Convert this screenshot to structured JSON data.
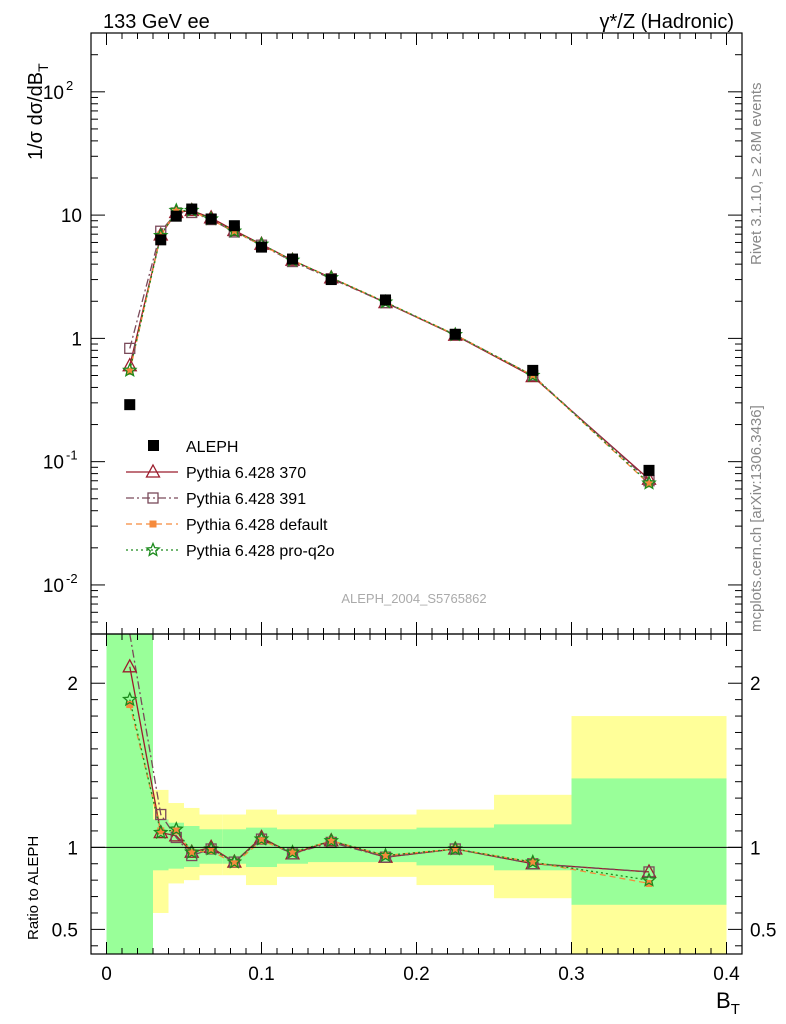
{
  "header": {
    "left": "133 GeV ee",
    "right": "γ*/Z (Hadronic)"
  },
  "side": {
    "rivet": "Rivet 3.1.10, ≥ 2.8M events",
    "mcplots": "mcplots.cern.ch [arXiv:1306.3436]"
  },
  "watermark": "ALEPH_2004_S5765862",
  "axes": {
    "ylabel_main": "1/σ  dσ/dB_T",
    "ylabel_ratio": "Ratio to ALEPH",
    "xlabel": "B_T"
  },
  "colors": {
    "aleph": "#000000",
    "p370": "#9b1c2c",
    "p391": "#7a4a5a",
    "pdefault": "#f58a3c",
    "pq2o": "#1c8a1c",
    "band_inner": "#99ff99",
    "band_outer": "#ffff99"
  },
  "chart_data": {
    "type": "line",
    "x_range": [
      -0.01,
      0.41
    ],
    "x_ticks": [
      "0",
      "0.1",
      "0.2",
      "0.3",
      "0.4"
    ],
    "main": {
      "y_scale": "log",
      "ylim": [
        0.004,
        300
      ],
      "y_ticks": [
        "10^-2",
        "10^-1",
        "1",
        "10",
        "10^2"
      ],
      "bins": [
        [
          0.0,
          0.03
        ],
        [
          0.03,
          0.04
        ],
        [
          0.04,
          0.05
        ],
        [
          0.05,
          0.06
        ],
        [
          0.06,
          0.075
        ],
        [
          0.075,
          0.09
        ],
        [
          0.09,
          0.11
        ],
        [
          0.11,
          0.13
        ],
        [
          0.13,
          0.16
        ],
        [
          0.16,
          0.2
        ],
        [
          0.2,
          0.25
        ],
        [
          0.25,
          0.3
        ],
        [
          0.3,
          0.4
        ]
      ],
      "x": [
        0.015,
        0.035,
        0.045,
        0.055,
        0.0675,
        0.0825,
        0.1,
        0.12,
        0.145,
        0.18,
        0.225,
        0.275,
        0.35
      ],
      "aleph": [
        0.29,
        6.3,
        9.8,
        11.2,
        9.3,
        8.2,
        5.5,
        4.4,
        3.0,
        2.05,
        1.08,
        0.55,
        0.085
      ],
      "series": [
        {
          "name": "Pythia 6.428 370",
          "marker": "triangle",
          "dash": "",
          "values": [
            0.6,
            6.9,
            10.5,
            10.9,
            9.5,
            7.5,
            5.8,
            4.3,
            3.1,
            1.95,
            1.06,
            0.49,
            0.072
          ]
        },
        {
          "name": "Pythia 6.428 391",
          "marker": "square",
          "dash": "8,3,2,3",
          "values": [
            0.83,
            7.4,
            10.4,
            10.5,
            9.2,
            7.3,
            5.7,
            4.2,
            3.05,
            1.95,
            1.07,
            0.5,
            0.07
          ]
        },
        {
          "name": "Pythia 6.428 default",
          "marker": "dot",
          "dash": "6,4",
          "values": [
            0.54,
            6.9,
            10.8,
            10.8,
            9.1,
            7.4,
            5.7,
            4.3,
            3.1,
            1.97,
            1.07,
            0.5,
            0.066
          ]
        },
        {
          "name": "Pythia 6.428 pro-q2o",
          "marker": "star",
          "dash": "2,3",
          "values": [
            0.55,
            6.8,
            10.9,
            10.9,
            9.3,
            7.4,
            5.8,
            4.3,
            3.1,
            1.97,
            1.07,
            0.5,
            0.067
          ]
        }
      ],
      "legend_data_label": "ALEPH"
    },
    "ratio": {
      "ylim": [
        0.35,
        2.3
      ],
      "y_ticks": [
        "0.5",
        "1",
        "2"
      ],
      "band_inner": [
        [
          0.3,
          2.3
        ],
        [
          0.86,
          1.17
        ],
        [
          0.87,
          1.15
        ],
        [
          0.88,
          1.13
        ],
        [
          0.9,
          1.11
        ],
        [
          0.9,
          1.11
        ],
        [
          0.88,
          1.12
        ],
        [
          0.9,
          1.11
        ],
        [
          0.91,
          1.11
        ],
        [
          0.91,
          1.11
        ],
        [
          0.89,
          1.12
        ],
        [
          0.86,
          1.14
        ],
        [
          0.65,
          1.42
        ]
      ],
      "band_outer": [
        [
          0.3,
          2.3
        ],
        [
          0.6,
          1.35
        ],
        [
          0.78,
          1.27
        ],
        [
          0.8,
          1.24
        ],
        [
          0.83,
          1.2
        ],
        [
          0.83,
          1.2
        ],
        [
          0.77,
          1.23
        ],
        [
          0.82,
          1.2
        ],
        [
          0.82,
          1.2
        ],
        [
          0.82,
          1.2
        ],
        [
          0.77,
          1.23
        ],
        [
          0.69,
          1.32
        ],
        [
          0.35,
          1.8
        ]
      ],
      "series": [
        [
          2.1,
          1.09,
          1.07,
          0.97,
          1.0,
          0.91,
          1.06,
          0.96,
          1.04,
          0.94,
          0.99,
          0.9,
          0.85
        ],
        [
          2.9,
          1.2,
          1.06,
          0.95,
          0.99,
          0.91,
          1.05,
          0.96,
          1.03,
          0.94,
          0.99,
          0.9,
          0.85
        ],
        [
          1.87,
          1.1,
          1.1,
          0.97,
          0.98,
          0.9,
          1.04,
          0.97,
          1.04,
          0.95,
          0.99,
          0.91,
          0.78
        ],
        [
          1.9,
          1.09,
          1.11,
          0.97,
          0.99,
          0.91,
          1.05,
          0.97,
          1.04,
          0.95,
          0.99,
          0.91,
          0.8
        ]
      ]
    }
  }
}
